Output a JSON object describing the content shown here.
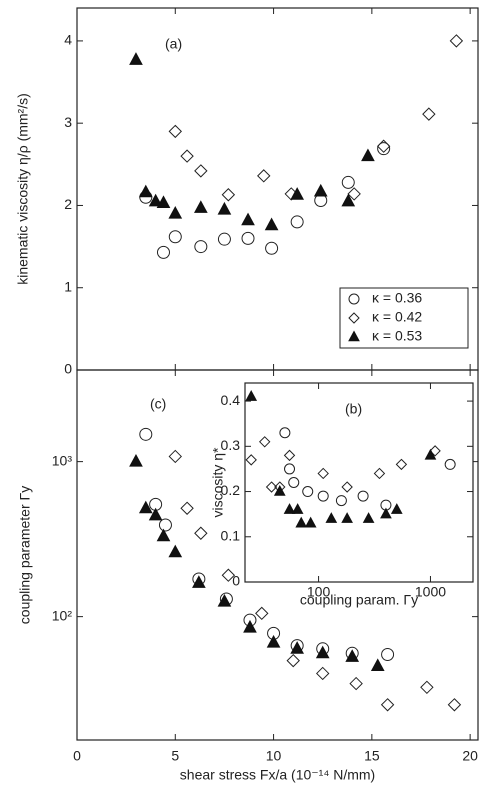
{
  "chart_data": [
    {
      "type": "scatter",
      "panel_label": "(a)",
      "ylabel": "kinematic viscosity η/ρ (mm²/s)",
      "xlim": [
        0,
        20.4
      ],
      "xticks": [
        0,
        5,
        10,
        15,
        20
      ],
      "ylim": [
        0,
        4.4
      ],
      "yticks": [
        0,
        1,
        2,
        3,
        4
      ],
      "legend": "lower right",
      "series": [
        {
          "name": "κ = 0.36",
          "marker": "circle",
          "color": "#222",
          "x": [
            3.5,
            4.4,
            5.0,
            6.3,
            7.5,
            8.7,
            9.9,
            11.2,
            12.4,
            13.8,
            15.6
          ],
          "values": [
            2.1,
            1.43,
            1.62,
            1.5,
            1.59,
            1.6,
            1.48,
            1.8,
            2.06,
            2.28,
            2.69
          ]
        },
        {
          "name": "κ = 0.42",
          "marker": "diamond",
          "color": "#222",
          "x": [
            5.0,
            5.6,
            6.3,
            7.7,
            9.5,
            10.9,
            14.1,
            15.6,
            17.9,
            19.3
          ],
          "values": [
            2.9,
            2.6,
            2.42,
            2.13,
            2.36,
            2.14,
            2.14,
            2.72,
            3.11,
            4.0
          ]
        },
        {
          "name": "κ = 0.53",
          "marker": "triangle",
          "color": "#111",
          "x": [
            3.0,
            3.5,
            4.0,
            4.4,
            5.0,
            6.3,
            7.5,
            8.7,
            9.9,
            11.2,
            12.4,
            13.8,
            14.8
          ],
          "values": [
            3.77,
            2.16,
            2.05,
            2.03,
            1.9,
            1.97,
            1.95,
            1.82,
            1.76,
            2.13,
            2.17,
            2.05,
            2.6
          ]
        }
      ]
    },
    {
      "type": "scatter",
      "panel_label": "(c)",
      "ylabel": "coupling parameter Γy",
      "xlabel": "shear stress Fx/a  (10⁻¹⁴ N/mm)",
      "xlim": [
        0,
        20.4
      ],
      "xticks": [
        0,
        5,
        10,
        15,
        20
      ],
      "yscale": "log",
      "ylim": [
        16,
        3900
      ],
      "yticks": [
        {
          "value": 100,
          "label": "10²"
        },
        {
          "value": 1000,
          "label": "10³"
        }
      ],
      "series": [
        {
          "name": "κ = 0.36",
          "marker": "circle",
          "color": "#222",
          "x": [
            3.5,
            4.0,
            4.5,
            6.2,
            7.6,
            8.8,
            10.0,
            11.2,
            12.5,
            14.0,
            15.8
          ],
          "values": [
            1500,
            530,
            390,
            175,
            130,
            95,
            78,
            65,
            62,
            58,
            57
          ]
        },
        {
          "name": "κ = 0.42",
          "marker": "diamond",
          "color": "#222",
          "x": [
            5.0,
            5.6,
            6.3,
            7.7,
            9.4,
            11.0,
            12.5,
            14.2,
            15.8,
            17.8,
            19.2
          ],
          "values": [
            1080,
            500,
            345,
            185,
            105,
            52,
            43,
            37,
            27,
            35,
            27
          ]
        },
        {
          "name": "κ = 0.53",
          "marker": "triangle",
          "color": "#111",
          "x": [
            3.0,
            3.5,
            4.0,
            4.4,
            5.0,
            6.2,
            7.5,
            8.8,
            10.0,
            11.2,
            12.5,
            14.0,
            15.3
          ],
          "values": [
            1000,
            500,
            450,
            330,
            260,
            165,
            125,
            85,
            68,
            62,
            58,
            55,
            48
          ]
        }
      ]
    },
    {
      "type": "scatter",
      "panel_label": "(b)",
      "ylabel": "viscosity η*",
      "xlabel": "coupling param. Γy",
      "xscale": "log",
      "xlim": [
        22,
        2400
      ],
      "xticks": [
        100,
        1000
      ],
      "ylim": [
        0,
        0.44
      ],
      "yticks": [
        0,
        0.1,
        0.2,
        0.3,
        0.4
      ],
      "series": [
        {
          "name": "κ = 0.36",
          "marker": "circle",
          "color": "#222",
          "x": [
            50,
            55,
            60,
            80,
            110,
            160,
            250,
            400,
            1500
          ],
          "values": [
            0.33,
            0.25,
            0.22,
            0.2,
            0.19,
            0.18,
            0.19,
            0.17,
            0.26
          ]
        },
        {
          "name": "κ = 0.42",
          "marker": "diamond",
          "color": "#222",
          "x": [
            25,
            33,
            38,
            45,
            55,
            110,
            180,
            350,
            550,
            1100
          ],
          "values": [
            0.27,
            0.31,
            0.21,
            0.21,
            0.28,
            0.24,
            0.21,
            0.24,
            0.26,
            0.29
          ]
        },
        {
          "name": "κ = 0.53",
          "marker": "triangle",
          "color": "#111",
          "x": [
            25,
            45,
            55,
            65,
            70,
            85,
            130,
            180,
            280,
            400,
            500,
            1000
          ],
          "values": [
            0.41,
            0.2,
            0.16,
            0.16,
            0.13,
            0.13,
            0.14,
            0.14,
            0.14,
            0.15,
            0.16,
            0.28
          ]
        }
      ]
    }
  ]
}
